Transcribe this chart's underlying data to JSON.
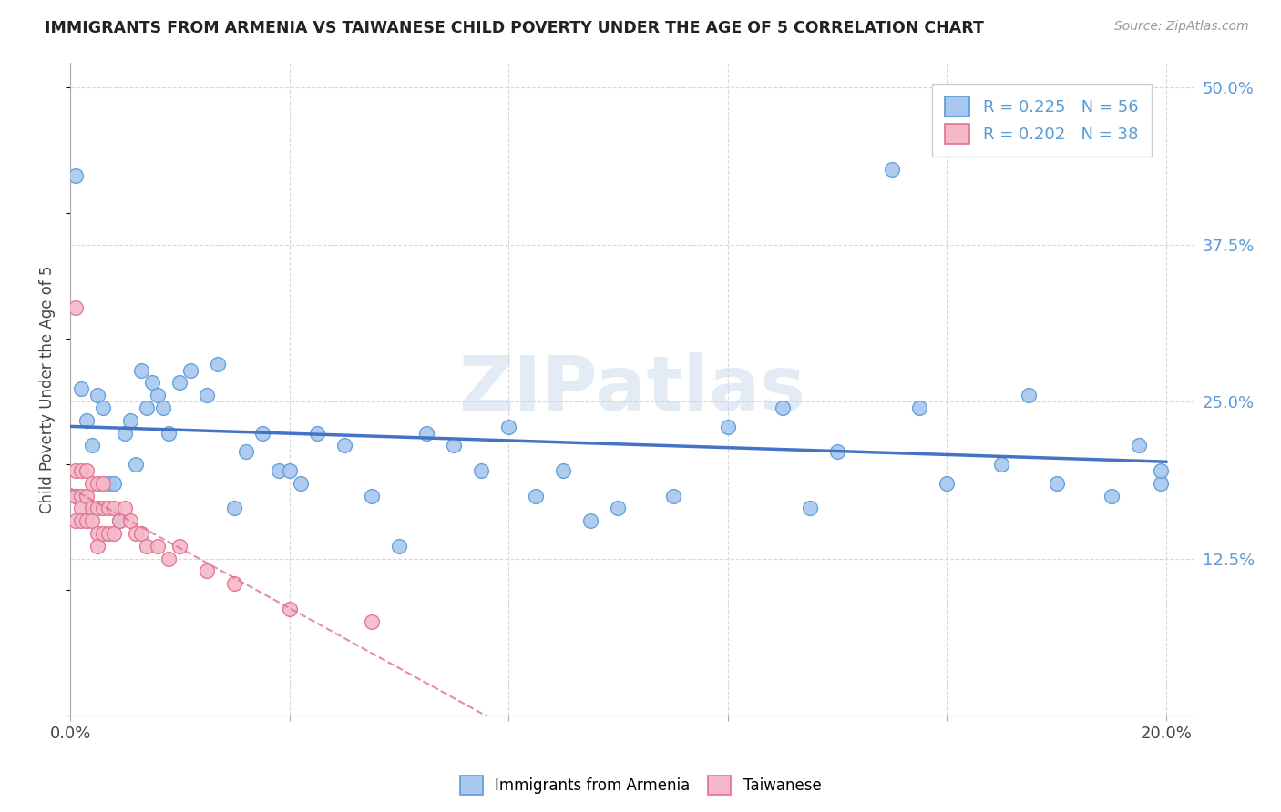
{
  "title": "IMMIGRANTS FROM ARMENIA VS TAIWANESE CHILD POVERTY UNDER THE AGE OF 5 CORRELATION CHART",
  "source": "Source: ZipAtlas.com",
  "ylabel": "Child Poverty Under the Age of 5",
  "xlim": [
    0.0,
    0.205
  ],
  "ylim": [
    0.0,
    0.52
  ],
  "xtick_positions": [
    0.0,
    0.04,
    0.08,
    0.12,
    0.16,
    0.2
  ],
  "xtick_labels": [
    "0.0%",
    "",
    "",
    "",
    "",
    "20.0%"
  ],
  "ytick_positions": [
    0.125,
    0.25,
    0.375,
    0.5
  ],
  "ytick_labels": [
    "12.5%",
    "25.0%",
    "37.5%",
    "50.0%"
  ],
  "armenia_R": 0.225,
  "armenia_N": 56,
  "taiwanese_R": 0.202,
  "taiwanese_N": 38,
  "armenia_color": "#a8c8f0",
  "armenian_edge_color": "#5b9bd5",
  "armenian_line_color": "#4472c4",
  "taiwanese_color": "#f4b8c8",
  "taiwanese_edge_color": "#e07090",
  "taiwanese_line_color": "#e07090",
  "watermark": "ZIPatlas",
  "background_color": "#ffffff",
  "grid_color": "#d8d8d8",
  "armenia_x": [
    0.001,
    0.001,
    0.002,
    0.003,
    0.004,
    0.005,
    0.006,
    0.007,
    0.008,
    0.009,
    0.01,
    0.011,
    0.012,
    0.013,
    0.014,
    0.015,
    0.016,
    0.017,
    0.018,
    0.02,
    0.022,
    0.025,
    0.027,
    0.03,
    0.032,
    0.035,
    0.038,
    0.04,
    0.042,
    0.045,
    0.05,
    0.055,
    0.06,
    0.065,
    0.07,
    0.075,
    0.08,
    0.085,
    0.09,
    0.095,
    0.1,
    0.11,
    0.12,
    0.13,
    0.135,
    0.14,
    0.15,
    0.155,
    0.16,
    0.17,
    0.175,
    0.18,
    0.19,
    0.195,
    0.199,
    0.199
  ],
  "armenia_y": [
    0.43,
    0.175,
    0.26,
    0.235,
    0.215,
    0.255,
    0.245,
    0.185,
    0.185,
    0.155,
    0.225,
    0.235,
    0.2,
    0.275,
    0.245,
    0.265,
    0.255,
    0.245,
    0.225,
    0.265,
    0.275,
    0.255,
    0.28,
    0.165,
    0.21,
    0.225,
    0.195,
    0.195,
    0.185,
    0.225,
    0.215,
    0.175,
    0.135,
    0.225,
    0.215,
    0.195,
    0.23,
    0.175,
    0.195,
    0.155,
    0.165,
    0.175,
    0.23,
    0.245,
    0.165,
    0.21,
    0.435,
    0.245,
    0.185,
    0.2,
    0.255,
    0.185,
    0.175,
    0.215,
    0.185,
    0.195
  ],
  "taiwanese_x": [
    0.001,
    0.001,
    0.001,
    0.001,
    0.002,
    0.002,
    0.002,
    0.002,
    0.003,
    0.003,
    0.003,
    0.004,
    0.004,
    0.004,
    0.005,
    0.005,
    0.005,
    0.005,
    0.006,
    0.006,
    0.006,
    0.007,
    0.007,
    0.008,
    0.008,
    0.009,
    0.01,
    0.011,
    0.012,
    0.013,
    0.014,
    0.016,
    0.018,
    0.02,
    0.025,
    0.03,
    0.04,
    0.055
  ],
  "taiwanese_y": [
    0.325,
    0.195,
    0.175,
    0.155,
    0.195,
    0.175,
    0.165,
    0.155,
    0.195,
    0.175,
    0.155,
    0.185,
    0.165,
    0.155,
    0.185,
    0.165,
    0.145,
    0.135,
    0.185,
    0.165,
    0.145,
    0.165,
    0.145,
    0.165,
    0.145,
    0.155,
    0.165,
    0.155,
    0.145,
    0.145,
    0.135,
    0.135,
    0.125,
    0.135,
    0.115,
    0.105,
    0.085,
    0.075
  ]
}
